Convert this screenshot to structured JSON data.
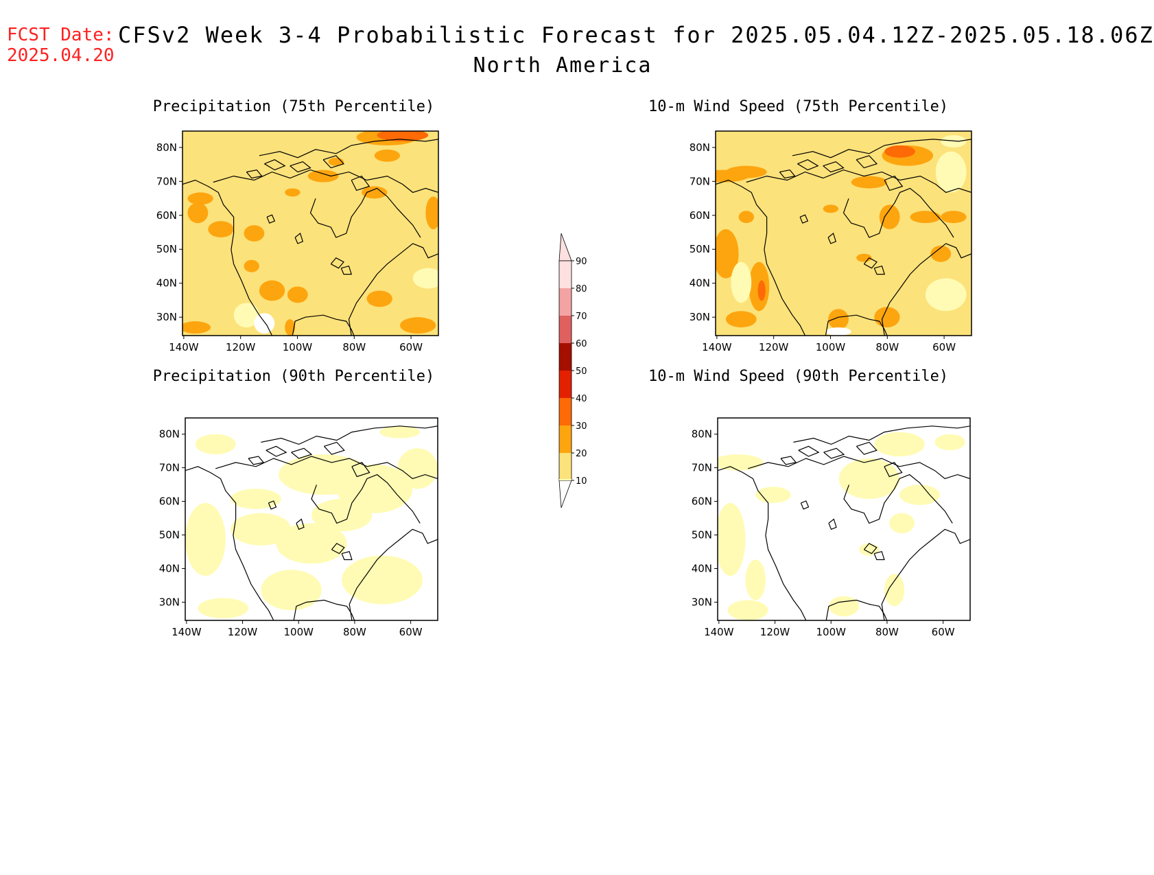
{
  "header": {
    "fcst_date_label": "FCST Date:",
    "fcst_date": "2025.04.20",
    "title": "CFSv2 Week 3-4 Probabilistic Forecast for 2025.05.04.12Z-2025.05.18.06Z",
    "region": "North America"
  },
  "panels": [
    {
      "id": "precip75",
      "title": "Precipitation (75th Percentile)"
    },
    {
      "id": "wind75",
      "title": "10-m Wind Speed (75th Percentile)"
    },
    {
      "id": "precip90",
      "title": "Precipitation (90th Percentile)"
    },
    {
      "id": "wind90",
      "title": "10-m Wind Speed (90th Percentile)"
    }
  ],
  "axes": {
    "lat_ticks": [
      "80N",
      "70N",
      "60N",
      "50N",
      "40N",
      "30N"
    ],
    "lon_ticks": [
      "140W",
      "120W",
      "100W",
      "80W",
      "60W"
    ]
  },
  "colorbar": {
    "levels": [
      "10",
      "20",
      "30",
      "40",
      "50",
      "60",
      "70",
      "80",
      "90"
    ],
    "colors": [
      "#fffbb4",
      "#fce27a",
      "#fda50f",
      "#fd6a06",
      "#e32100",
      "#a50f00",
      "#e06060",
      "#f3a3a3",
      "#fde0e0"
    ]
  },
  "palette": {
    "title_color": "#ff2020",
    "coast_color": "#000000"
  }
}
